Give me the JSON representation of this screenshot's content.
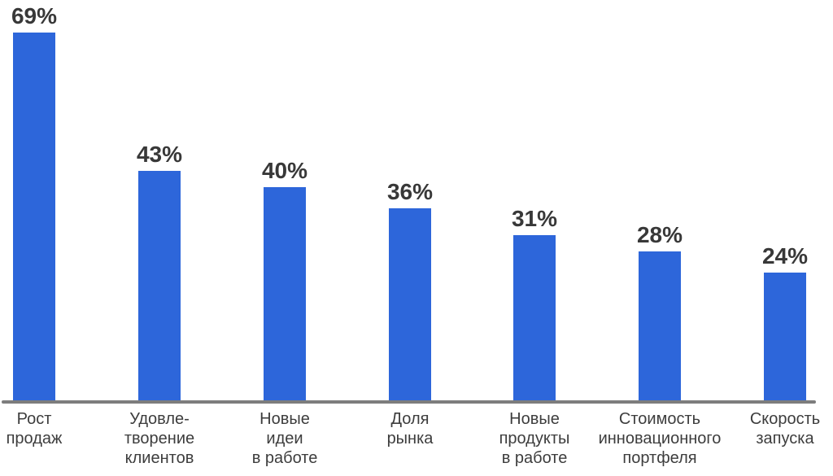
{
  "chart_data": {
    "type": "bar",
    "title": "",
    "xlabel": "",
    "ylabel": "",
    "ylim": [
      0,
      70
    ],
    "grid": false,
    "legend": false,
    "categories": [
      [
        "Рост",
        "продаж"
      ],
      [
        "Удовле-",
        "творение",
        "клиентов"
      ],
      [
        "Новые",
        "идеи",
        "в работе"
      ],
      [
        "Доля",
        "рынка"
      ],
      [
        "Новые",
        "продукты",
        "в работе"
      ],
      [
        "Стоимость",
        "инновационного",
        "портфеля"
      ],
      [
        "Скорость",
        "запуска"
      ]
    ],
    "values": [
      69,
      43,
      40,
      36,
      31,
      28,
      24
    ],
    "value_labels": [
      "69%",
      "43%",
      "40%",
      "36%",
      "31%",
      "28%",
      "24%"
    ],
    "colors": {
      "bar": "#2d66da",
      "axis_line": "#7d7d7d",
      "value_label": "#383838",
      "category_label": "#3d3d3d",
      "background": "#ffffff"
    }
  }
}
